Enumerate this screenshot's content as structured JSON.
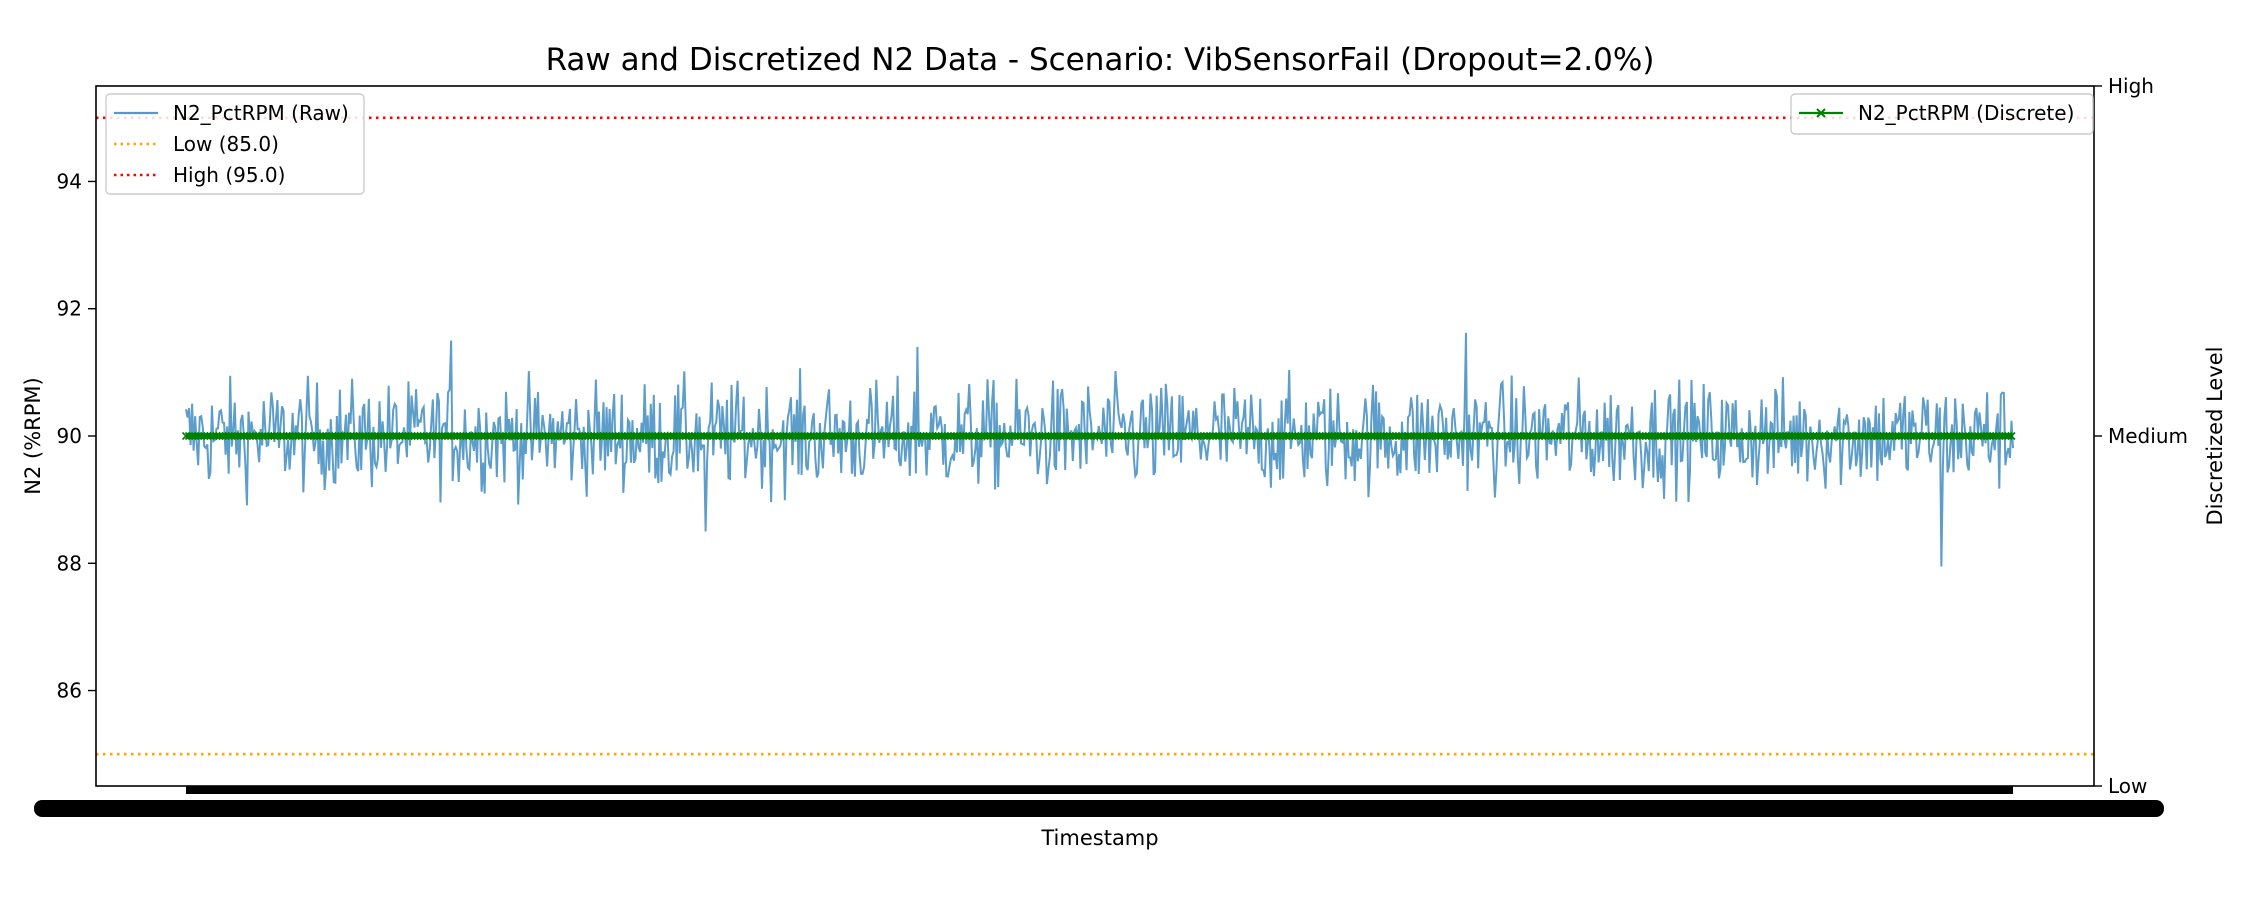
{
  "chart_data": {
    "type": "line",
    "title": "Raw and Discretized N2 Data - Scenario: VibSensorFail (Dropout=2.0%)",
    "xlabel": "Timestamp",
    "ylabel": "N2 (%RPM)",
    "y2label": "Discretized Level",
    "ylim": [
      84.5,
      95.5
    ],
    "yticks": [
      86,
      88,
      90,
      92,
      94
    ],
    "y2_levels": [
      "Low",
      "Medium",
      "High"
    ],
    "grid": false,
    "legend_left_placement": "upper-left",
    "legend_right_placement": "upper-right",
    "series": [
      {
        "name": "N2_PctRPM (Raw)",
        "color": "#1f77b4",
        "axis": "left",
        "num_points": 1200,
        "mean": 90.0,
        "typical_range": [
          89.2,
          90.9
        ],
        "min": 87.95,
        "max": 91.62
      },
      {
        "name": "N2_PctRPM (Discrete)",
        "color": "#008000",
        "axis": "right",
        "marker": "x",
        "level": "Medium"
      }
    ],
    "thresholds": [
      {
        "name": "Low (85.0)",
        "value": 85.0,
        "color": "#ffa500"
      },
      {
        "name": "High (95.0)",
        "value": 95.0,
        "color": "#ff0000"
      }
    ]
  }
}
